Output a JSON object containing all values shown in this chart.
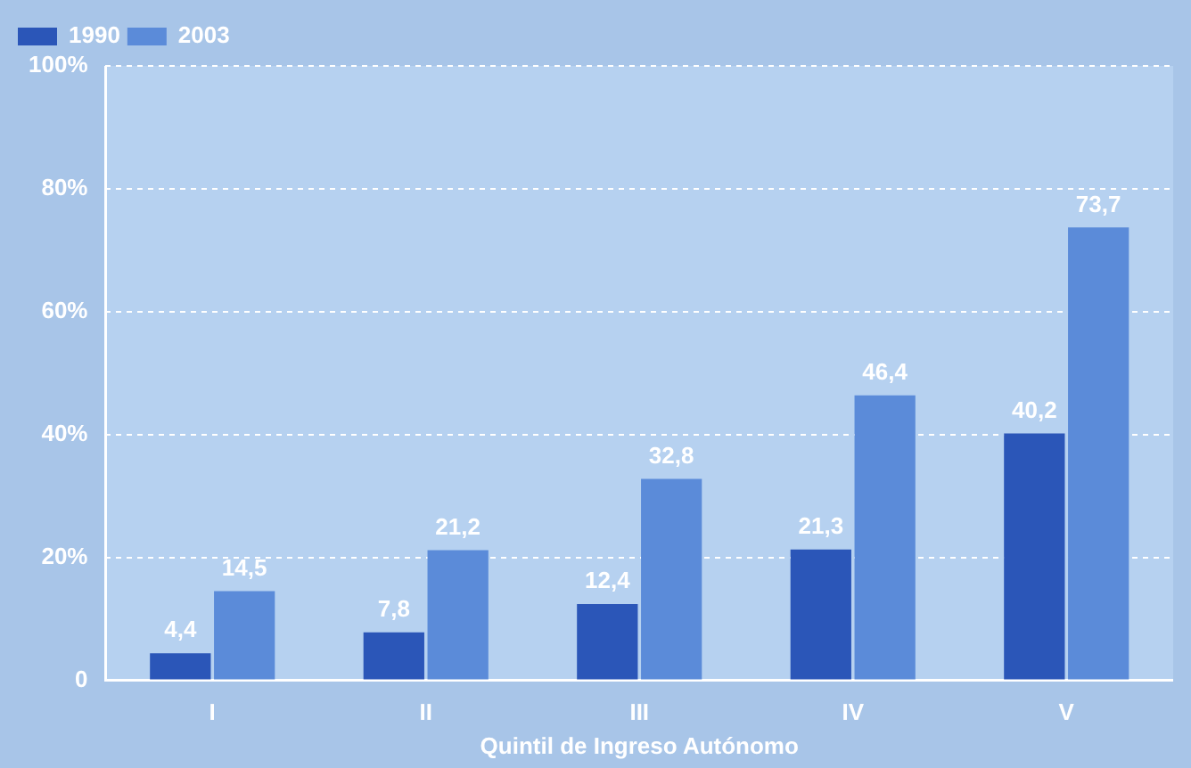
{
  "chart_data": {
    "type": "bar",
    "xlabel": "Quintil de Ingreso Autónomo",
    "categories": [
      "I",
      "II",
      "III",
      "IV",
      "V"
    ],
    "series": [
      {
        "name": "1990",
        "color": "#2b56b8",
        "values": [
          4.4,
          7.8,
          12.4,
          21.3,
          40.2
        ],
        "value_labels": [
          "4,4",
          "7,8",
          "12,4",
          "21,3",
          "40,2"
        ]
      },
      {
        "name": "2003",
        "color": "#5b8bd9",
        "values": [
          14.5,
          21.2,
          32.8,
          46.4,
          73.7
        ],
        "value_labels": [
          "14,5",
          "21,2",
          "32,8",
          "46,4",
          "73,7"
        ]
      }
    ],
    "ylim": [
      0,
      100
    ],
    "yticks": [
      0,
      {
        "value": 20,
        "label": "20%"
      },
      {
        "value": 40,
        "label": "40%"
      },
      {
        "value": 60,
        "label": "60%"
      },
      {
        "value": 80,
        "label": "80%"
      },
      {
        "value": 100,
        "label": "100%"
      }
    ],
    "grid": "y",
    "legend": "top left"
  }
}
